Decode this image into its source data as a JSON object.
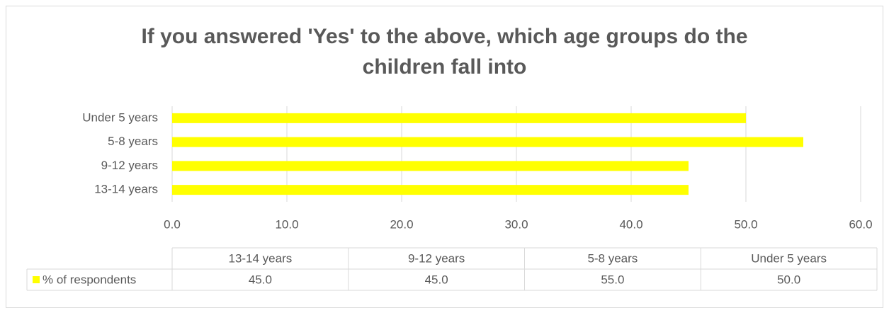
{
  "chart_data": {
    "type": "bar",
    "orientation": "horizontal",
    "title": "If you answered 'Yes' to the above, which age groups do the children fall into",
    "categories": [
      "13-14 years",
      "9-12 years",
      "5-8 years",
      "Under 5 years"
    ],
    "series": [
      {
        "name": "% of respondents",
        "color": "#ffff00",
        "values": [
          45,
          45,
          55,
          50
        ],
        "value_labels": [
          "45.0",
          "45.0",
          "55.0",
          "50.0"
        ]
      }
    ],
    "xlim": [
      0,
      60
    ],
    "xticks": [
      {
        "value": 0,
        "label": "0.0"
      },
      {
        "value": 10,
        "label": "10.0"
      },
      {
        "value": 20,
        "label": "20.0"
      },
      {
        "value": 30,
        "label": "30.0"
      },
      {
        "value": 40,
        "label": "40.0"
      },
      {
        "value": 50,
        "label": "50.0"
      },
      {
        "value": 60,
        "label": "60.0"
      }
    ],
    "grid": true,
    "data_table": true
  }
}
